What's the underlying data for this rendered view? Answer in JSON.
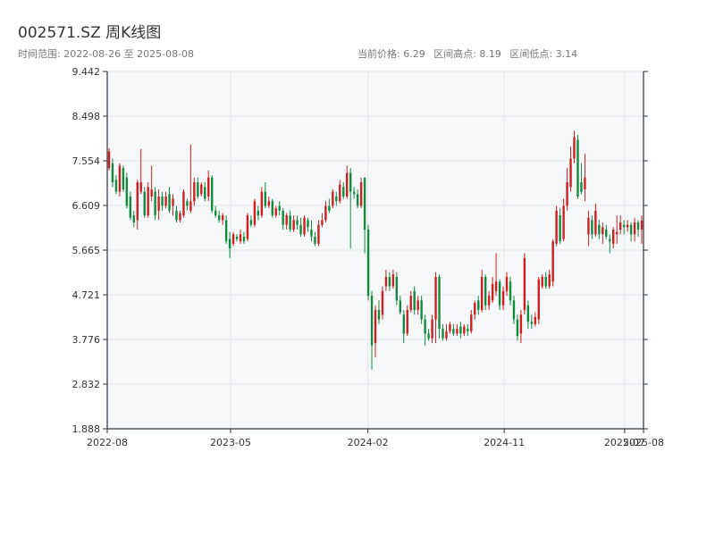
{
  "header": {
    "title": "002571.SZ 周K线图",
    "subtitle": "时间范围: 2022-08-26 至 2025-08-08",
    "stats": {
      "current": "当前价格: 6.29",
      "high": "区间高点: 8.19",
      "low": "区间低点: 3.14"
    }
  },
  "colors": {
    "up": "#cc1f1f",
    "down": "#118a3e",
    "plot_bg": "#f6f7f9",
    "grid": "#e3e6ea",
    "axis": "#2b3440"
  },
  "chart_data": {
    "type": "candlestick",
    "title": "002571.SZ 周K线图",
    "ylim": [
      1.888,
      9.442
    ],
    "yticks": [
      "1.888",
      "2.832",
      "3.776",
      "4.721",
      "5.665",
      "6.609",
      "7.554",
      "8.498",
      "9.442"
    ],
    "xlim": [
      "2022-08-26",
      "2025-08-08"
    ],
    "xticks": [
      {
        "label": "2022-08",
        "date": "2022-08-26"
      },
      {
        "label": "2023-05",
        "date": "2023-05-01"
      },
      {
        "label": "2024-02",
        "date": "2024-02-01"
      },
      {
        "label": "2024-11",
        "date": "2024-11-01"
      },
      {
        "label": "2025-07",
        "date": "2025-07-01"
      },
      {
        "label": "2025-08",
        "date": "2025-08-08"
      }
    ],
    "series_columns": [
      "open",
      "close",
      "high",
      "low"
    ],
    "ohlc": [
      [
        7.4,
        7.75,
        7.82,
        7.35
      ],
      [
        7.5,
        7.1,
        7.6,
        7.0
      ],
      [
        7.15,
        6.9,
        7.25,
        6.85
      ],
      [
        6.9,
        7.45,
        7.5,
        6.8
      ],
      [
        7.4,
        6.95,
        7.45,
        6.9
      ],
      [
        7.2,
        6.6,
        7.3,
        6.55
      ],
      [
        6.8,
        6.35,
        6.9,
        6.3
      ],
      [
        6.4,
        6.25,
        6.5,
        6.15
      ],
      [
        6.3,
        7.1,
        7.15,
        6.1
      ],
      [
        6.9,
        7.1,
        7.8,
        6.85
      ],
      [
        6.9,
        6.4,
        7.0,
        6.35
      ],
      [
        6.4,
        7.0,
        7.1,
        6.35
      ],
      [
        6.8,
        6.95,
        7.45,
        6.7
      ],
      [
        6.9,
        6.4,
        7.0,
        6.3
      ],
      [
        6.5,
        6.8,
        6.95,
        6.3
      ],
      [
        6.8,
        6.6,
        6.9,
        6.5
      ],
      [
        6.6,
        6.8,
        6.9,
        6.55
      ],
      [
        6.85,
        6.5,
        7.0,
        6.45
      ],
      [
        6.6,
        6.75,
        6.85,
        6.4
      ],
      [
        6.5,
        6.3,
        6.6,
        6.25
      ],
      [
        6.3,
        6.45,
        6.5,
        6.25
      ],
      [
        6.4,
        6.9,
        6.95,
        6.35
      ],
      [
        6.7,
        6.6,
        6.75,
        6.5
      ],
      [
        6.5,
        6.7,
        7.9,
        6.45
      ],
      [
        6.7,
        7.1,
        7.2,
        6.6
      ],
      [
        7.1,
        6.8,
        7.2,
        6.75
      ],
      [
        6.85,
        7.05,
        7.1,
        6.8
      ],
      [
        7.0,
        6.75,
        7.1,
        6.7
      ],
      [
        6.8,
        7.2,
        7.35,
        6.7
      ],
      [
        7.2,
        6.5,
        7.25,
        6.45
      ],
      [
        6.5,
        6.4,
        6.6,
        6.35
      ],
      [
        6.4,
        6.3,
        6.5,
        6.25
      ],
      [
        6.3,
        6.4,
        6.45,
        6.2
      ],
      [
        6.3,
        5.85,
        6.4,
        5.8
      ],
      [
        5.9,
        5.7,
        6.05,
        5.5
      ],
      [
        5.8,
        6.0,
        6.05,
        5.75
      ],
      [
        5.95,
        5.9,
        6.0,
        5.85
      ],
      [
        5.85,
        6.0,
        6.1,
        5.8
      ],
      [
        5.95,
        5.85,
        6.05,
        5.8
      ],
      [
        5.9,
        6.4,
        6.45,
        5.85
      ],
      [
        6.3,
        6.2,
        6.4,
        6.15
      ],
      [
        6.2,
        6.7,
        6.75,
        6.15
      ],
      [
        6.5,
        6.4,
        6.6,
        6.3
      ],
      [
        6.4,
        6.9,
        7.0,
        6.35
      ],
      [
        6.9,
        6.6,
        7.1,
        6.55
      ],
      [
        6.6,
        6.7,
        6.8,
        6.55
      ],
      [
        6.7,
        6.4,
        6.75,
        6.35
      ],
      [
        6.4,
        6.55,
        6.6,
        6.35
      ],
      [
        6.6,
        6.5,
        6.7,
        6.4
      ],
      [
        6.5,
        6.2,
        6.55,
        6.1
      ],
      [
        6.2,
        6.4,
        6.45,
        6.1
      ],
      [
        6.4,
        6.1,
        6.5,
        6.05
      ],
      [
        6.1,
        6.3,
        6.4,
        6.05
      ],
      [
        6.3,
        6.2,
        6.4,
        6.1
      ],
      [
        6.2,
        6.0,
        6.35,
        5.95
      ],
      [
        6.0,
        6.35,
        6.4,
        5.95
      ],
      [
        6.3,
        6.15,
        6.35,
        6.05
      ],
      [
        6.1,
        5.95,
        6.3,
        5.85
      ],
      [
        5.95,
        5.8,
        6.05,
        5.75
      ],
      [
        5.8,
        6.2,
        6.3,
        5.75
      ],
      [
        6.2,
        6.3,
        6.45,
        6.15
      ],
      [
        6.3,
        6.6,
        6.7,
        6.25
      ],
      [
        6.6,
        6.5,
        6.75,
        6.45
      ],
      [
        6.6,
        6.9,
        6.95,
        6.55
      ],
      [
        6.8,
        6.7,
        6.9,
        6.6
      ],
      [
        6.7,
        7.05,
        7.15,
        6.65
      ],
      [
        7.0,
        6.8,
        7.1,
        6.75
      ],
      [
        6.8,
        7.3,
        7.45,
        6.75
      ],
      [
        7.3,
        6.9,
        7.4,
        5.7
      ],
      [
        6.9,
        6.85,
        7.0,
        6.75
      ],
      [
        6.85,
        6.6,
        6.95,
        6.55
      ],
      [
        6.6,
        7.1,
        7.2,
        6.55
      ],
      [
        7.2,
        6.1,
        7.2,
        5.6
      ],
      [
        6.1,
        4.7,
        6.2,
        4.6
      ],
      [
        4.7,
        3.65,
        4.8,
        3.14
      ],
      [
        3.7,
        4.4,
        4.5,
        3.4
      ],
      [
        4.4,
        4.2,
        4.6,
        4.1
      ],
      [
        4.3,
        4.8,
        4.9,
        4.2
      ],
      [
        4.9,
        5.1,
        5.25,
        4.8
      ],
      [
        5.1,
        4.9,
        5.2,
        4.8
      ],
      [
        4.9,
        5.15,
        5.25,
        4.85
      ],
      [
        5.1,
        4.6,
        5.2,
        4.5
      ],
      [
        4.6,
        4.35,
        4.7,
        4.3
      ],
      [
        4.3,
        3.9,
        4.4,
        3.7
      ],
      [
        3.9,
        4.4,
        4.5,
        3.85
      ],
      [
        4.4,
        4.7,
        4.8,
        4.35
      ],
      [
        4.8,
        4.4,
        4.9,
        4.3
      ],
      [
        4.4,
        4.6,
        4.7,
        4.3
      ],
      [
        4.6,
        4.2,
        4.7,
        4.1
      ],
      [
        4.2,
        3.9,
        4.3,
        3.65
      ],
      [
        3.9,
        3.8,
        4.0,
        3.75
      ],
      [
        3.8,
        4.2,
        4.3,
        3.7
      ],
      [
        4.2,
        5.1,
        5.2,
        3.7
      ],
      [
        5.1,
        4.0,
        5.15,
        3.8
      ],
      [
        4.0,
        3.8,
        4.1,
        3.75
      ],
      [
        3.8,
        3.95,
        4.1,
        3.75
      ],
      [
        3.95,
        4.1,
        4.15,
        3.9
      ],
      [
        4.0,
        3.9,
        4.1,
        3.85
      ],
      [
        3.9,
        4.0,
        4.1,
        3.85
      ],
      [
        4.05,
        3.9,
        4.15,
        3.8
      ],
      [
        3.9,
        4.05,
        4.1,
        3.85
      ],
      [
        4.0,
        3.95,
        4.1,
        3.85
      ],
      [
        3.95,
        4.3,
        4.4,
        3.9
      ],
      [
        4.3,
        4.55,
        4.6,
        4.2
      ],
      [
        4.6,
        4.4,
        4.7,
        4.3
      ],
      [
        4.4,
        5.1,
        5.25,
        4.35
      ],
      [
        5.1,
        4.5,
        5.15,
        4.4
      ],
      [
        4.5,
        4.7,
        4.8,
        4.4
      ],
      [
        4.6,
        4.95,
        5.1,
        4.55
      ],
      [
        4.8,
        5.0,
        5.6,
        4.7
      ],
      [
        5.0,
        4.5,
        5.05,
        4.4
      ],
      [
        4.5,
        4.8,
        4.9,
        4.4
      ],
      [
        4.8,
        5.1,
        5.2,
        4.7
      ],
      [
        5.0,
        4.6,
        5.1,
        4.5
      ],
      [
        4.6,
        4.2,
        4.7,
        4.1
      ],
      [
        4.2,
        3.85,
        4.3,
        3.75
      ],
      [
        3.9,
        4.3,
        4.4,
        3.7
      ],
      [
        4.4,
        5.5,
        5.6,
        4.3
      ],
      [
        4.5,
        4.15,
        4.6,
        4.0
      ],
      [
        4.15,
        4.1,
        4.3,
        4.0
      ],
      [
        4.1,
        4.25,
        4.35,
        4.05
      ],
      [
        4.2,
        5.05,
        5.1,
        4.1
      ],
      [
        4.9,
        5.1,
        5.15,
        4.85
      ],
      [
        5.1,
        4.9,
        5.2,
        4.85
      ],
      [
        4.9,
        5.15,
        5.25,
        4.85
      ],
      [
        5.0,
        5.85,
        5.9,
        4.9
      ],
      [
        5.8,
        6.5,
        6.6,
        5.75
      ],
      [
        6.4,
        5.85,
        6.55,
        5.8
      ],
      [
        5.9,
        6.6,
        6.75,
        5.85
      ],
      [
        6.6,
        7.1,
        7.4,
        6.5
      ],
      [
        7.0,
        7.6,
        7.85,
        6.9
      ],
      [
        7.6,
        8.05,
        8.19,
        7.5
      ],
      [
        8.0,
        6.8,
        8.1,
        6.75
      ],
      [
        7.1,
        6.9,
        7.5,
        6.85
      ],
      [
        6.95,
        7.2,
        7.7,
        6.7
      ],
      [
        6.0,
        6.35,
        6.5,
        5.75
      ],
      [
        6.3,
        6.0,
        6.4,
        5.9
      ],
      [
        6.0,
        6.5,
        6.65,
        5.95
      ],
      [
        6.2,
        6.0,
        6.3,
        5.9
      ],
      [
        6.0,
        6.15,
        6.25,
        5.8
      ],
      [
        6.1,
        5.95,
        6.2,
        5.9
      ],
      [
        5.9,
        5.85,
        6.0,
        5.6
      ],
      [
        5.8,
        6.1,
        6.15,
        5.7
      ],
      [
        6.0,
        6.05,
        6.4,
        5.8
      ],
      [
        6.1,
        6.25,
        6.4,
        6.0
      ],
      [
        6.2,
        6.15,
        6.3,
        6.0
      ],
      [
        6.15,
        6.2,
        6.3,
        6.05
      ],
      [
        6.2,
        6.0,
        6.25,
        5.85
      ],
      [
        6.0,
        6.25,
        6.35,
        5.85
      ],
      [
        6.25,
        6.1,
        6.3,
        5.95
      ],
      [
        6.1,
        6.29,
        6.4,
        5.8
      ]
    ]
  }
}
